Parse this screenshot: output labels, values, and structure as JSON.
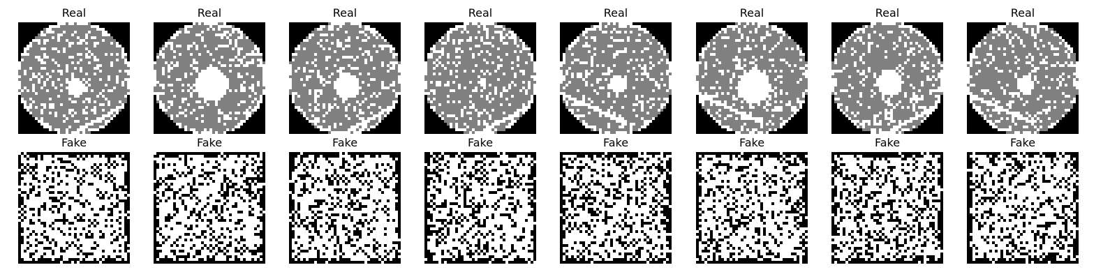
{
  "rows": [
    {
      "title": "Real",
      "kind": "real",
      "images": [
        {
          "hole": "small",
          "crack": "bottom-right"
        },
        {
          "hole": "large",
          "crack": "none"
        },
        {
          "hole": "medium",
          "crack": "bottom-right"
        },
        {
          "hole": "tiny",
          "crack": "bottom-right"
        },
        {
          "hole": "small",
          "crack": "bottom-left"
        },
        {
          "hole": "large",
          "crack": "bottom-left"
        },
        {
          "hole": "medium",
          "crack": "bottom-right"
        },
        {
          "hole": "small",
          "crack": "bottom-left"
        }
      ]
    },
    {
      "title": "Fake",
      "kind": "fake",
      "images": [
        {
          "pattern": "checker-noise"
        },
        {
          "pattern": "checker-noise"
        },
        {
          "pattern": "checker-noise"
        },
        {
          "pattern": "checker-noise"
        },
        {
          "pattern": "checker-noise"
        },
        {
          "pattern": "checker-noise"
        },
        {
          "pattern": "checker-noise"
        },
        {
          "pattern": "checker-noise"
        }
      ]
    }
  ],
  "colors": {
    "background": "#000000",
    "wafer": "#808080",
    "speckle": "#ffffff",
    "fake_light": "#ffffff",
    "fake_dark": "#000000"
  }
}
